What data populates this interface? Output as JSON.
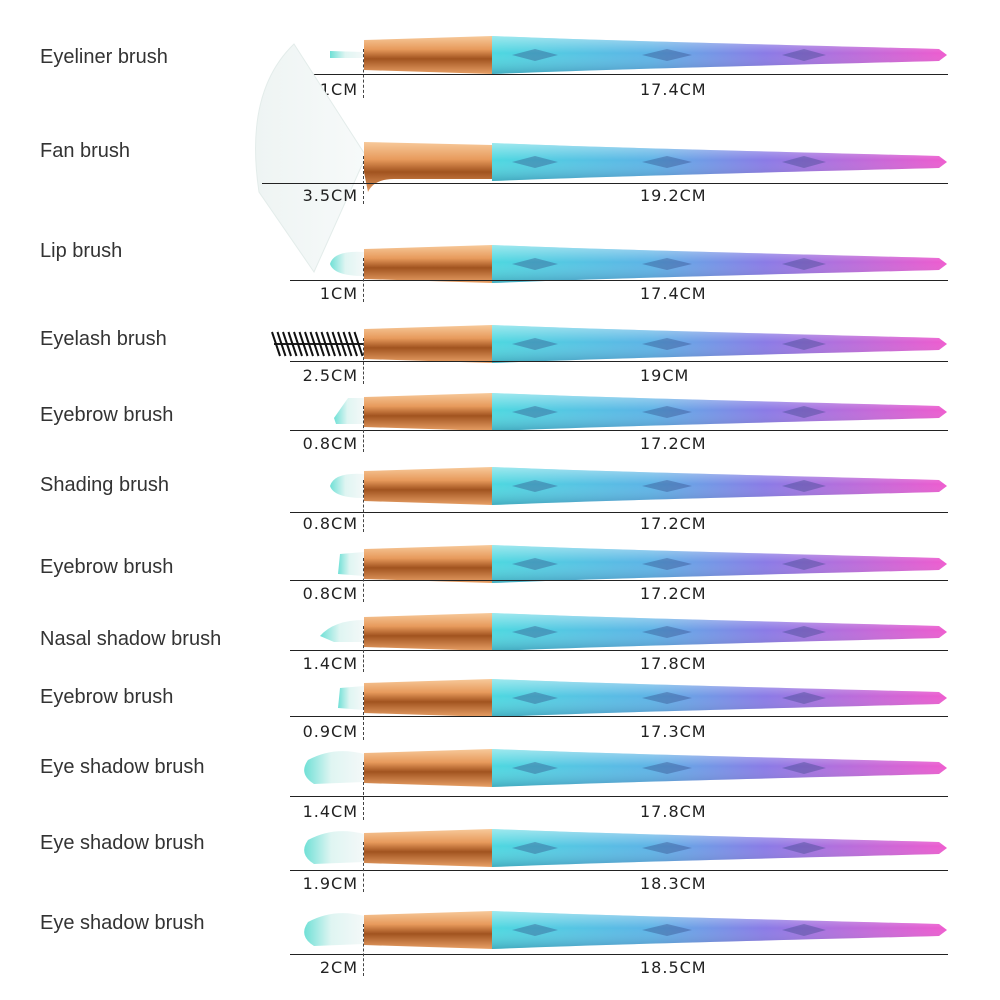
{
  "colors": {
    "ferrule_light": "#f3b47e",
    "ferrule_dark": "#a1531f",
    "handle_start": "#4ed8e0",
    "handle_mid": "#7f83e6",
    "handle_end": "#ee5ccf",
    "bristle": "#e8f4f2",
    "bristle_tip": "#6fe0d6",
    "line": "#222222"
  },
  "brushes": [
    {
      "name": "Eyeliner brush",
      "head_length": "1CM",
      "total_length": "17.4CM",
      "head_type": "liner-bristle"
    },
    {
      "name": "Fan brush",
      "head_length": "3.5CM",
      "total_length": "19.2CM",
      "head_type": "fan-bristle"
    },
    {
      "name": "Lip brush",
      "head_length": "1CM",
      "total_length": "17.4CM",
      "head_type": "round-bristle"
    },
    {
      "name": "Eyelash brush",
      "head_length": "2.5CM",
      "total_length": "19CM",
      "head_type": "spoolie"
    },
    {
      "name": "Eyebrow brush",
      "head_length": "0.8CM",
      "total_length": "17.2CM",
      "head_type": "angled-bristle"
    },
    {
      "name": "Shading brush",
      "head_length": "0.8CM",
      "total_length": "17.2CM",
      "head_type": "round-bristle"
    },
    {
      "name": "Eyebrow brush",
      "head_length": "0.8CM",
      "total_length": "17.2CM",
      "head_type": "flat-bristle"
    },
    {
      "name": "Nasal shadow brush",
      "head_length": "1.4CM",
      "total_length": "17.8CM",
      "head_type": "pointed-bristle"
    },
    {
      "name": "Eyebrow brush",
      "head_length": "0.9CM",
      "total_length": "17.3CM",
      "head_type": "flat-bristle"
    },
    {
      "name": "Eye shadow brush",
      "head_length": "1.4CM",
      "total_length": "17.8CM",
      "head_type": "dome-bristle"
    },
    {
      "name": "Eye shadow brush",
      "head_length": "1.9CM",
      "total_length": "18.3CM",
      "head_type": "dome-bristle"
    },
    {
      "name": "Eye shadow brush",
      "head_length": "2CM",
      "total_length": "18.5CM",
      "head_type": "dome-bristle"
    }
  ]
}
